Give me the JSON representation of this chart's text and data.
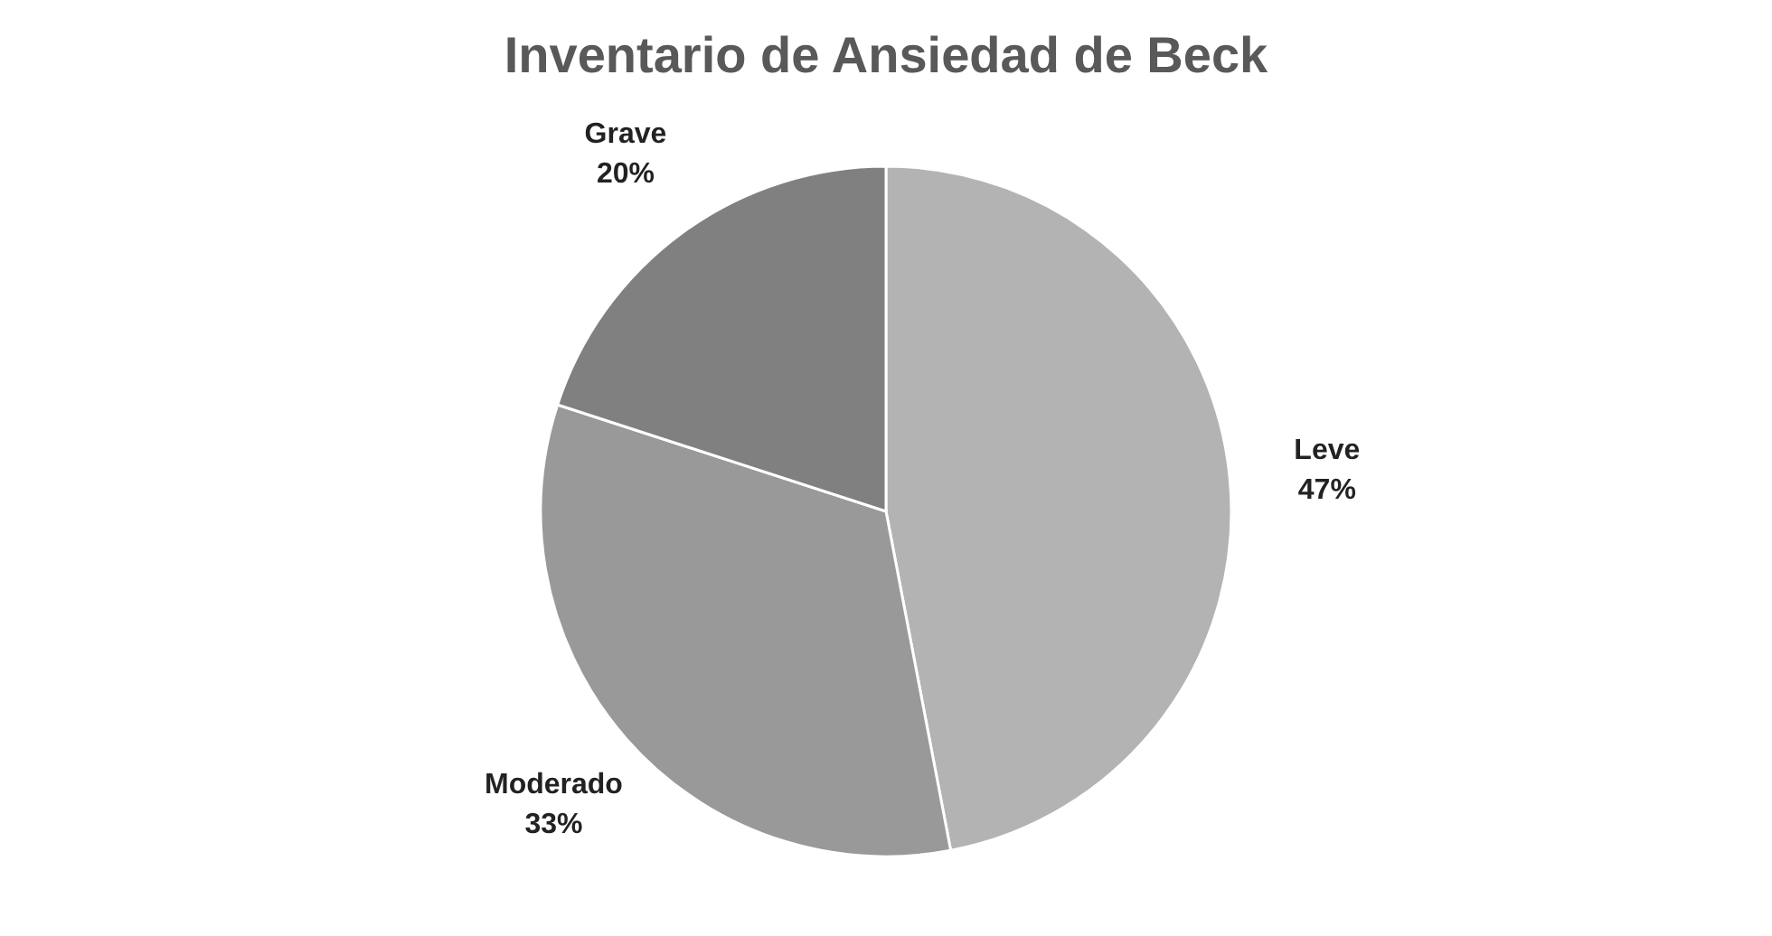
{
  "chart_data": {
    "type": "pie",
    "title": "Inventario de Ansiedad de Beck",
    "categories": [
      "Leve",
      "Moderado",
      "Grave"
    ],
    "values": [
      47,
      33,
      20
    ],
    "colors": [
      "#b3b3b3",
      "#999999",
      "#808080"
    ],
    "data_labels": true,
    "value_labels": [
      "47%",
      "33%",
      "20%"
    ],
    "legend": false
  }
}
